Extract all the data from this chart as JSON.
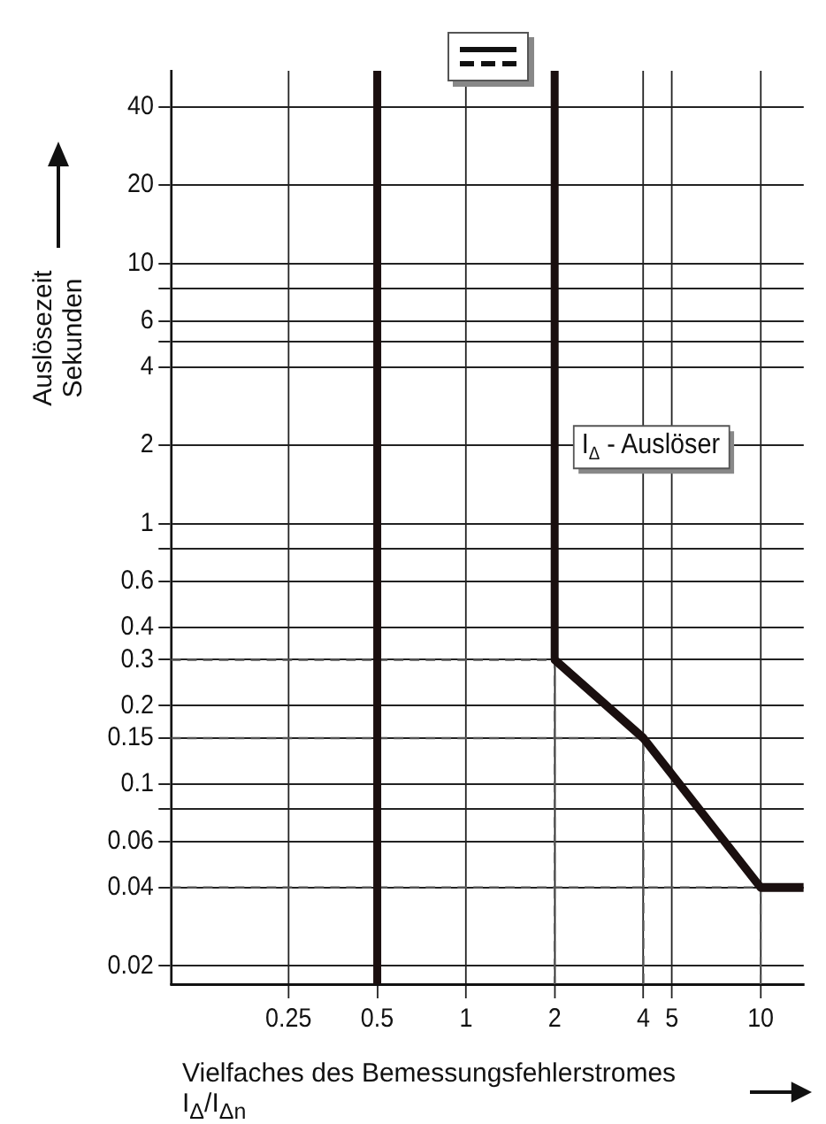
{
  "chart_data": {
    "type": "line",
    "xlabel": "Vielfaches des Bemessungsfehlerstromes I$_{Δ}$/I$_{Δn}$",
    "ylabel": "Auslösezeit Sekunden",
    "annotations": [
      "I$_{Δ}$ - Auslöser"
    ],
    "log": "xy",
    "xlim": [
      0.1,
      14
    ],
    "ylim": [
      0.017,
      55
    ],
    "xticks": [
      0.25,
      0.5,
      1,
      2,
      4,
      5,
      10
    ],
    "yticks": [
      0.02,
      0.04,
      0.06,
      {
        "value": 0.08,
        "label": null
      },
      0.1,
      0.15,
      0.2,
      0.3,
      0.4,
      0.6,
      {
        "value": 0.8,
        "label": null
      },
      1,
      2,
      4,
      {
        "value": 5,
        "label": null
      },
      6,
      {
        "value": 8,
        "label": null
      },
      10,
      20,
      40
    ],
    "grid": true,
    "legend": false,
    "marker": "none",
    "series": [
      {
        "color": "#1a0f0f",
        "x": [
          0.5,
          0.5
        ],
        "values": [
          0.017,
          55
        ],
        "line_style": "solid"
      },
      {
        "color": "#1a0f0f",
        "x": [
          2,
          2,
          4,
          10,
          14
        ],
        "values": [
          55,
          0.3,
          0.15,
          0.04,
          0.04
        ],
        "line_style": "solid"
      },
      {
        "color": "#555555",
        "x": [
          0.1,
          2,
          2
        ],
        "values": [
          0.3,
          0.3,
          0.017
        ],
        "line_style": "dashed"
      },
      {
        "color": "#555555",
        "x": [
          0.1,
          4,
          4
        ],
        "values": [
          0.15,
          0.15,
          0.017
        ],
        "line_style": "dashed"
      },
      {
        "color": "#555555",
        "x": [
          0.1,
          10,
          10
        ],
        "values": [
          0.04,
          0.04,
          0.017
        ],
        "line_style": "dashed"
      }
    ]
  }
}
